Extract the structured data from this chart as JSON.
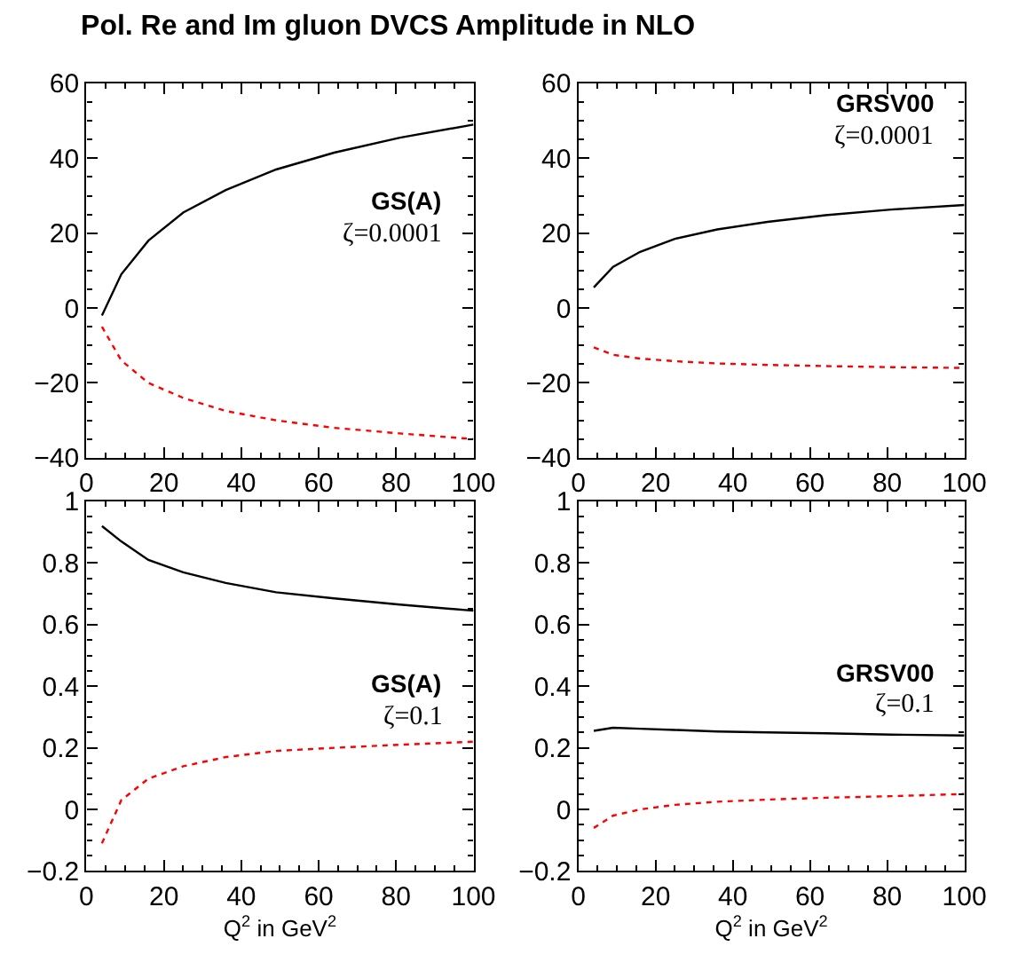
{
  "chart_data": [
    {
      "type": "line",
      "title": "Pol. Re and Im gluon DVCS Amplitude in NLO",
      "x": [
        4,
        9,
        16,
        25,
        36,
        49,
        64,
        81,
        100
      ],
      "series": [
        {
          "color": "#000000",
          "line_style": "solid",
          "values": [
            -2,
            9,
            18,
            25.5,
            31.5,
            37,
            41.5,
            45.5,
            49
          ]
        },
        {
          "color": "#ff0000",
          "line_style": "dotted",
          "values": [
            -5,
            -14,
            -20,
            -24,
            -27.5,
            -30,
            -32,
            -33.5,
            -35
          ]
        }
      ],
      "annotations": [
        "GS(A)",
        "ζ=0.0001"
      ],
      "xlim": [
        0,
        100
      ],
      "xticks": [
        0,
        20,
        40,
        60,
        80,
        100
      ],
      "ylim": [
        -40,
        60
      ],
      "yticks": [
        -40,
        -20,
        0,
        20,
        40,
        60
      ]
    },
    {
      "type": "line",
      "x": [
        4,
        9,
        16,
        25,
        36,
        49,
        64,
        81,
        100
      ],
      "series": [
        {
          "color": "#000000",
          "line_style": "solid",
          "values": [
            5.5,
            11,
            15,
            18.5,
            21,
            23,
            24.8,
            26.3,
            27.5
          ]
        },
        {
          "color": "#ff0000",
          "line_style": "dotted",
          "values": [
            -10.5,
            -12.5,
            -13.5,
            -14.2,
            -14.8,
            -15.2,
            -15.5,
            -15.8,
            -16
          ]
        }
      ],
      "annotations": [
        "GRSV00",
        "ζ=0.0001"
      ],
      "xlim": [
        0,
        100
      ],
      "xticks": [
        0,
        20,
        40,
        60,
        80,
        100
      ],
      "ylim": [
        -40,
        60
      ],
      "yticks": [
        -40,
        -20,
        0,
        20,
        40,
        60
      ]
    },
    {
      "type": "line",
      "xlabel": "Q$^{2}$ in GeV$^{2}$",
      "x": [
        4,
        9,
        16,
        25,
        36,
        49,
        64,
        81,
        100
      ],
      "series": [
        {
          "color": "#000000",
          "line_style": "solid",
          "values": [
            0.92,
            0.87,
            0.81,
            0.77,
            0.735,
            0.705,
            0.685,
            0.665,
            0.645
          ]
        },
        {
          "color": "#ff0000",
          "line_style": "dotted",
          "values": [
            -0.11,
            0.03,
            0.1,
            0.14,
            0.17,
            0.19,
            0.2,
            0.21,
            0.22
          ]
        }
      ],
      "annotations": [
        "GS(A)",
        "ζ=0.1"
      ],
      "xlim": [
        0,
        100
      ],
      "xticks": [
        0,
        20,
        40,
        60,
        80,
        100
      ],
      "ylim": [
        -0.2,
        1
      ],
      "yticks": [
        {
          "value": -0.2,
          "label": "−0.2"
        },
        0,
        {
          "value": 0.2,
          "label": "0.2"
        },
        {
          "value": 0.4,
          "label": "0.4"
        },
        {
          "value": 0.6,
          "label": "0.6"
        },
        {
          "value": 0.8,
          "label": "0.8"
        },
        1
      ]
    },
    {
      "type": "line",
      "xlabel": "Q$^{2}$ in GeV$^{2}$",
      "x": [
        4,
        9,
        16,
        25,
        36,
        49,
        64,
        81,
        100
      ],
      "series": [
        {
          "color": "#000000",
          "line_style": "solid",
          "values": [
            0.255,
            0.265,
            0.262,
            0.258,
            0.253,
            0.25,
            0.247,
            0.243,
            0.24
          ]
        },
        {
          "color": "#ff0000",
          "line_style": "dotted",
          "values": [
            -0.06,
            -0.02,
            0,
            0.015,
            0.025,
            0.032,
            0.038,
            0.043,
            0.05
          ]
        }
      ],
      "annotations": [
        "GRSV00",
        "ζ=0.1"
      ],
      "xlim": [
        0,
        100
      ],
      "xticks": [
        0,
        20,
        40,
        60,
        80,
        100
      ],
      "ylim": [
        -0.2,
        1
      ],
      "yticks": [
        {
          "value": -0.2,
          "label": "−0.2"
        },
        0,
        {
          "value": 0.2,
          "label": "0.2"
        },
        {
          "value": 0.4,
          "label": "0.4"
        },
        {
          "value": 0.6,
          "label": "0.6"
        },
        {
          "value": 0.8,
          "label": "0.8"
        },
        1
      ]
    }
  ]
}
